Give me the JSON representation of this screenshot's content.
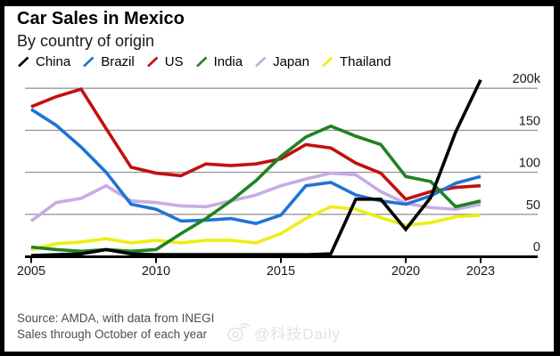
{
  "header": {
    "title": "Car Sales in Mexico",
    "subtitle": "By country of origin"
  },
  "chart_data": {
    "type": "line",
    "x": [
      2005,
      2006,
      2007,
      2008,
      2009,
      2010,
      2011,
      2012,
      2013,
      2014,
      2015,
      2016,
      2017,
      2018,
      2019,
      2020,
      2021,
      2022,
      2023
    ],
    "series": [
      {
        "name": "China",
        "color": "#000000",
        "values": [
          1,
          2,
          3,
          8,
          3,
          2,
          2,
          2,
          2,
          2,
          2,
          2,
          3,
          68,
          68,
          32,
          70,
          148,
          210
        ]
      },
      {
        "name": "Brazil",
        "color": "#2173d4",
        "values": [
          175,
          156,
          130,
          100,
          62,
          56,
          42,
          43,
          45,
          39,
          49,
          84,
          88,
          73,
          66,
          62,
          72,
          87,
          95
        ]
      },
      {
        "name": "US",
        "color": "#c40f0f",
        "values": [
          178,
          190,
          199,
          152,
          106,
          99,
          96,
          110,
          108,
          110,
          116,
          133,
          129,
          111,
          99,
          68,
          77,
          82,
          84
        ]
      },
      {
        "name": "India",
        "color": "#218221",
        "values": [
          11,
          8,
          6,
          8,
          6,
          8,
          27,
          45,
          66,
          90,
          119,
          142,
          155,
          143,
          133,
          95,
          89,
          59,
          66
        ]
      },
      {
        "name": "Japan",
        "color": "#c6ace4",
        "values": [
          42,
          64,
          69,
          84,
          66,
          64,
          60,
          59,
          66,
          73,
          84,
          92,
          99,
          97,
          77,
          63,
          58,
          56,
          62
        ]
      },
      {
        "name": "Thailand",
        "color": "#edee13",
        "values": [
          8,
          15,
          17,
          21,
          16,
          19,
          16,
          19,
          19,
          16,
          27,
          45,
          59,
          56,
          46,
          37,
          40,
          47,
          49
        ]
      }
    ],
    "y_ticks": [
      {
        "value": 200,
        "label": "200k"
      },
      {
        "value": 150,
        "label": "150"
      },
      {
        "value": 100,
        "label": "100"
      },
      {
        "value": 50,
        "label": "50"
      },
      {
        "value": 0,
        "label": "0"
      }
    ],
    "x_ticks": [
      {
        "year": 2005,
        "label": "2005"
      },
      {
        "year": 2010,
        "label": "2010"
      },
      {
        "year": 2015,
        "label": "2015"
      },
      {
        "year": 2020,
        "label": "2020"
      },
      {
        "year": 2023,
        "label": "2023"
      }
    ],
    "xlim": [
      2005,
      2023
    ],
    "ylim": [
      0,
      215
    ],
    "grid": "horizontal",
    "legend_position": "top",
    "draw_order": [
      "Japan",
      "Thailand",
      "US",
      "Brazil",
      "India",
      "China"
    ]
  },
  "footer": {
    "source_line1": "Source: AMDA, with data from INEGI",
    "source_line2": "Sales through October of each year"
  },
  "watermark": {
    "text": "@科技Daily"
  }
}
